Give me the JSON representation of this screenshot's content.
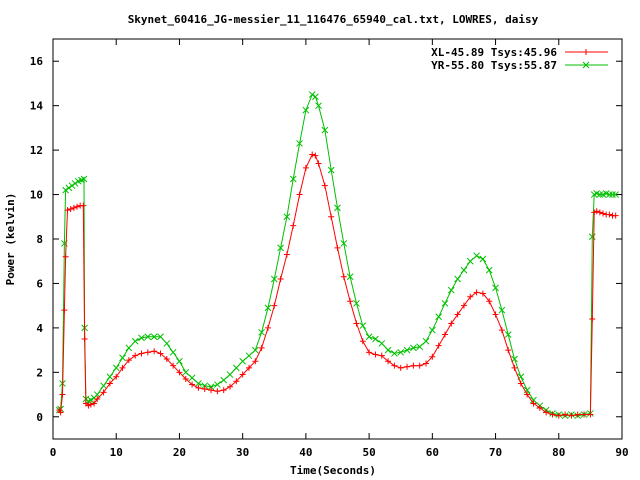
{
  "chart_data": {
    "type": "line",
    "title": "Skynet_60416_JG-messier_11_116476_65940_cal.txt, LOWRES, daisy",
    "xlabel": "Time(Seconds)",
    "ylabel": "Power (kelvin)",
    "xlim": [
      0,
      90
    ],
    "ylim": [
      -1,
      17
    ],
    "xticks": [
      0,
      10,
      20,
      30,
      40,
      50,
      60,
      70,
      80,
      90
    ],
    "yticks": [
      0,
      2,
      4,
      6,
      8,
      10,
      12,
      14,
      16
    ],
    "grid": false,
    "legend_position": "top-right",
    "series": [
      {
        "name": "XL-45.89 Tsys:45.96",
        "color": "#ff0000",
        "marker": "plus",
        "points": [
          [
            1.0,
            0.3
          ],
          [
            1.2,
            0.2
          ],
          [
            1.5,
            1.0
          ],
          [
            1.8,
            4.8
          ],
          [
            2.0,
            7.2
          ],
          [
            2.3,
            9.3
          ],
          [
            2.8,
            9.35
          ],
          [
            3.3,
            9.4
          ],
          [
            3.8,
            9.45
          ],
          [
            4.3,
            9.5
          ],
          [
            4.8,
            9.5
          ],
          [
            5.0,
            3.5
          ],
          [
            5.2,
            0.6
          ],
          [
            5.6,
            0.5
          ],
          [
            6.0,
            0.55
          ],
          [
            6.5,
            0.6
          ],
          [
            7,
            0.8
          ],
          [
            8,
            1.1
          ],
          [
            9,
            1.5
          ],
          [
            10,
            1.8
          ],
          [
            11,
            2.2
          ],
          [
            12,
            2.55
          ],
          [
            13,
            2.75
          ],
          [
            14,
            2.85
          ],
          [
            15,
            2.9
          ],
          [
            16,
            2.95
          ],
          [
            17,
            2.85
          ],
          [
            18,
            2.6
          ],
          [
            19,
            2.3
          ],
          [
            20,
            2.0
          ],
          [
            21,
            1.7
          ],
          [
            22,
            1.45
          ],
          [
            23,
            1.3
          ],
          [
            24,
            1.25
          ],
          [
            25,
            1.2
          ],
          [
            26,
            1.15
          ],
          [
            27,
            1.2
          ],
          [
            28,
            1.35
          ],
          [
            29,
            1.6
          ],
          [
            30,
            1.9
          ],
          [
            31,
            2.2
          ],
          [
            32,
            2.5
          ],
          [
            33,
            3.1
          ],
          [
            34,
            4.0
          ],
          [
            35,
            5.0
          ],
          [
            36,
            6.2
          ],
          [
            37,
            7.3
          ],
          [
            38,
            8.6
          ],
          [
            39,
            10.0
          ],
          [
            40,
            11.2
          ],
          [
            41,
            11.8
          ],
          [
            41.5,
            11.75
          ],
          [
            42,
            11.4
          ],
          [
            43,
            10.4
          ],
          [
            44,
            9.0
          ],
          [
            45,
            7.6
          ],
          [
            46,
            6.3
          ],
          [
            47,
            5.2
          ],
          [
            48,
            4.2
          ],
          [
            49,
            3.4
          ],
          [
            50,
            2.9
          ],
          [
            51,
            2.8
          ],
          [
            52,
            2.75
          ],
          [
            53,
            2.5
          ],
          [
            54,
            2.3
          ],
          [
            55,
            2.2
          ],
          [
            56,
            2.25
          ],
          [
            57,
            2.3
          ],
          [
            58,
            2.3
          ],
          [
            59,
            2.4
          ],
          [
            60,
            2.7
          ],
          [
            61,
            3.2
          ],
          [
            62,
            3.7
          ],
          [
            63,
            4.2
          ],
          [
            64,
            4.6
          ],
          [
            65,
            5.0
          ],
          [
            66,
            5.4
          ],
          [
            67,
            5.6
          ],
          [
            68,
            5.55
          ],
          [
            69,
            5.2
          ],
          [
            70,
            4.6
          ],
          [
            71,
            3.9
          ],
          [
            72,
            3.0
          ],
          [
            73,
            2.2
          ],
          [
            74,
            1.5
          ],
          [
            75,
            1.0
          ],
          [
            76,
            0.6
          ],
          [
            77,
            0.4
          ],
          [
            78,
            0.2
          ],
          [
            79,
            0.1
          ],
          [
            80,
            0.05
          ],
          [
            81,
            0.1
          ],
          [
            82,
            0.05
          ],
          [
            83,
            0.1
          ],
          [
            84,
            0.1
          ],
          [
            85,
            0.1
          ],
          [
            85.3,
            4.4
          ],
          [
            85.6,
            9.2
          ],
          [
            86,
            9.25
          ],
          [
            86.5,
            9.2
          ],
          [
            87,
            9.15
          ],
          [
            87.5,
            9.1
          ],
          [
            88,
            9.1
          ],
          [
            88.5,
            9.05
          ],
          [
            89,
            9.05
          ]
        ]
      },
      {
        "name": "YR-55.80 Tsys:55.87",
        "color": "#00c000",
        "marker": "cross",
        "points": [
          [
            1.0,
            0.3
          ],
          [
            1.2,
            0.35
          ],
          [
            1.5,
            1.5
          ],
          [
            1.8,
            7.8
          ],
          [
            2.0,
            10.2
          ],
          [
            2.5,
            10.3
          ],
          [
            3.0,
            10.4
          ],
          [
            3.5,
            10.5
          ],
          [
            4.0,
            10.6
          ],
          [
            4.5,
            10.65
          ],
          [
            4.9,
            10.7
          ],
          [
            5.0,
            4.0
          ],
          [
            5.2,
            0.8
          ],
          [
            5.6,
            0.7
          ],
          [
            6.0,
            0.75
          ],
          [
            6.5,
            0.85
          ],
          [
            7,
            1.0
          ],
          [
            8,
            1.4
          ],
          [
            9,
            1.8
          ],
          [
            10,
            2.2
          ],
          [
            11,
            2.65
          ],
          [
            12,
            3.1
          ],
          [
            13,
            3.4
          ],
          [
            14,
            3.55
          ],
          [
            15,
            3.6
          ],
          [
            16,
            3.6
          ],
          [
            17,
            3.6
          ],
          [
            18,
            3.3
          ],
          [
            19,
            2.9
          ],
          [
            20,
            2.5
          ],
          [
            21,
            2.0
          ],
          [
            22,
            1.75
          ],
          [
            23,
            1.5
          ],
          [
            24,
            1.4
          ],
          [
            25,
            1.35
          ],
          [
            26,
            1.45
          ],
          [
            27,
            1.65
          ],
          [
            28,
            1.9
          ],
          [
            29,
            2.2
          ],
          [
            30,
            2.5
          ],
          [
            31,
            2.75
          ],
          [
            32,
            3.0
          ],
          [
            33,
            3.8
          ],
          [
            34,
            4.9
          ],
          [
            35,
            6.2
          ],
          [
            36,
            7.6
          ],
          [
            37,
            9.0
          ],
          [
            38,
            10.7
          ],
          [
            39,
            12.3
          ],
          [
            40,
            13.8
          ],
          [
            41,
            14.5
          ],
          [
            41.5,
            14.4
          ],
          [
            42,
            14.0
          ],
          [
            43,
            12.9
          ],
          [
            44,
            11.1
          ],
          [
            45,
            9.4
          ],
          [
            46,
            7.8
          ],
          [
            47,
            6.3
          ],
          [
            48,
            5.1
          ],
          [
            49,
            4.1
          ],
          [
            50,
            3.6
          ],
          [
            51,
            3.5
          ],
          [
            52,
            3.3
          ],
          [
            53,
            3.0
          ],
          [
            54,
            2.85
          ],
          [
            55,
            2.9
          ],
          [
            56,
            3.0
          ],
          [
            57,
            3.1
          ],
          [
            58,
            3.15
          ],
          [
            59,
            3.4
          ],
          [
            60,
            3.9
          ],
          [
            61,
            4.5
          ],
          [
            62,
            5.1
          ],
          [
            63,
            5.7
          ],
          [
            64,
            6.2
          ],
          [
            65,
            6.6
          ],
          [
            66,
            7.0
          ],
          [
            67,
            7.25
          ],
          [
            68,
            7.1
          ],
          [
            69,
            6.6
          ],
          [
            70,
            5.8
          ],
          [
            71,
            4.8
          ],
          [
            72,
            3.7
          ],
          [
            73,
            2.6
          ],
          [
            74,
            1.8
          ],
          [
            75,
            1.2
          ],
          [
            76,
            0.75
          ],
          [
            77,
            0.5
          ],
          [
            78,
            0.3
          ],
          [
            79,
            0.15
          ],
          [
            80,
            0.1
          ],
          [
            81,
            0.05
          ],
          [
            82,
            0.1
          ],
          [
            83,
            0.05
          ],
          [
            84,
            0.1
          ],
          [
            85,
            0.15
          ],
          [
            85.3,
            8.1
          ],
          [
            85.6,
            10.0
          ],
          [
            86,
            10.05
          ],
          [
            86.5,
            10.0
          ],
          [
            87,
            10.0
          ],
          [
            87.5,
            10.05
          ],
          [
            88,
            10.0
          ],
          [
            88.5,
            10.0
          ],
          [
            89,
            10.0
          ]
        ]
      }
    ]
  }
}
